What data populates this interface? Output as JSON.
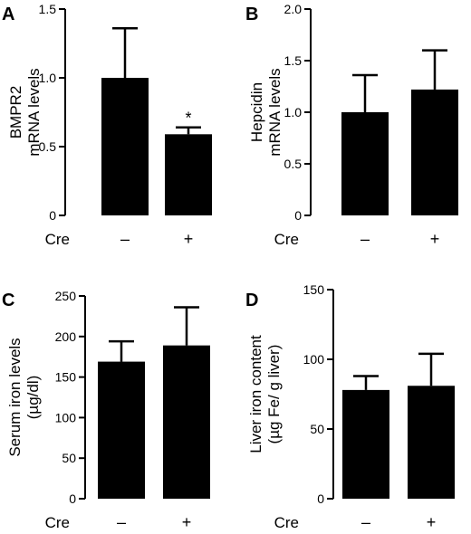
{
  "chart_data": [
    {
      "type": "bar",
      "panel": "A",
      "ylabel_lines": [
        "BMPR2",
        "mRNA levels"
      ],
      "ylim": [
        0,
        1.5
      ],
      "yticks": [
        "0",
        "0.5",
        "1.0",
        "1.5"
      ],
      "ytick_values": [
        0,
        0.5,
        1.0,
        1.5
      ],
      "group_title": "Cre",
      "categories": [
        "–",
        "+"
      ],
      "values": [
        1.0,
        0.59
      ],
      "errors": [
        0.36,
        0.05
      ],
      "annotations": [
        "",
        "*"
      ]
    },
    {
      "type": "bar",
      "panel": "B",
      "ylabel_lines": [
        "Hepcidin",
        "mRNA levels"
      ],
      "ylim": [
        0,
        2.0
      ],
      "yticks": [
        "0",
        "0.5",
        "1.0",
        "1.5",
        "2.0"
      ],
      "ytick_values": [
        0,
        0.5,
        1.0,
        1.5,
        2.0
      ],
      "group_title": "Cre",
      "categories": [
        "–",
        "+"
      ],
      "values": [
        1.0,
        1.22
      ],
      "errors": [
        0.36,
        0.38
      ],
      "annotations": [
        "",
        ""
      ]
    },
    {
      "type": "bar",
      "panel": "C",
      "ylabel_lines": [
        "Serum iron levels",
        "(µg/dl)"
      ],
      "ylim": [
        0,
        250
      ],
      "yticks": [
        "0",
        "50",
        "100",
        "150",
        "200",
        "250"
      ],
      "ytick_values": [
        0,
        50,
        100,
        150,
        200,
        250
      ],
      "group_title": "Cre",
      "categories": [
        "–",
        "+"
      ],
      "values": [
        169,
        189
      ],
      "errors": [
        25,
        47
      ],
      "annotations": [
        "",
        ""
      ]
    },
    {
      "type": "bar",
      "panel": "D",
      "ylabel_lines": [
        "Liver iron content",
        "(µg Fe/ g liver)"
      ],
      "ylim": [
        0,
        150
      ],
      "yticks": [
        "0",
        "50",
        "100",
        "150"
      ],
      "ytick_values": [
        0,
        50,
        100,
        150
      ],
      "group_title": "Cre",
      "categories": [
        "–",
        "+"
      ],
      "values": [
        78,
        81
      ],
      "errors": [
        10,
        23
      ],
      "annotations": [
        "",
        ""
      ]
    }
  ]
}
